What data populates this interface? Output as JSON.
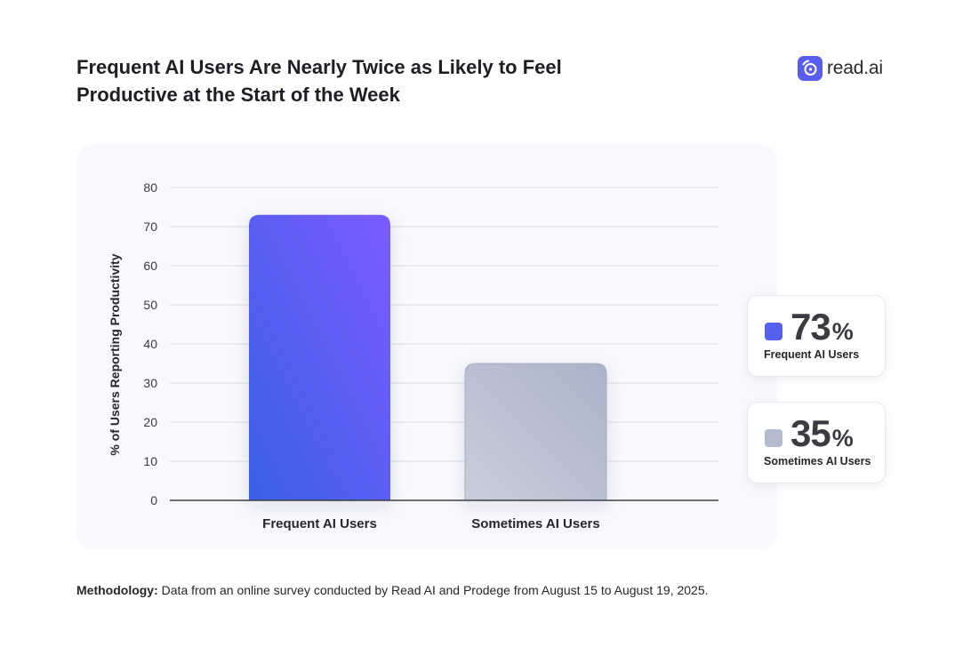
{
  "title": {
    "line1": "Frequent AI Users Are Nearly Twice as Likely to Feel",
    "line2": "Productive at the Start of the Week"
  },
  "brand": {
    "name": "read.ai",
    "icon": "read-ai-logo-icon",
    "color": "#5b5cf0"
  },
  "chart_data": {
    "type": "bar",
    "categories": [
      "Frequent AI Users",
      "Sometimes AI Users"
    ],
    "values": [
      73,
      35
    ],
    "ylabel": "% of Users Reporting Productivity",
    "xlabel": "",
    "ylim": [
      0,
      80
    ],
    "yticks": [
      0,
      10,
      20,
      30,
      40,
      50,
      60,
      70,
      80
    ],
    "grid": true,
    "colors": {
      "frequent": [
        "#3a5fe8",
        "#7b5cff"
      ],
      "sometimes": [
        "#c9cedb",
        "#aab3c9"
      ]
    }
  },
  "stats": [
    {
      "value": "73",
      "unit": "%",
      "label": "Frequent AI Users",
      "color": "#5560ef"
    },
    {
      "value": "35",
      "unit": "%",
      "label": "Sometimes AI Users",
      "color": "#b4bbcf"
    }
  ],
  "methodology": {
    "label": "Methodology:",
    "text": "Data from an online survey conducted by Read AI and Prodege from August 15 to August 19, 2025."
  }
}
